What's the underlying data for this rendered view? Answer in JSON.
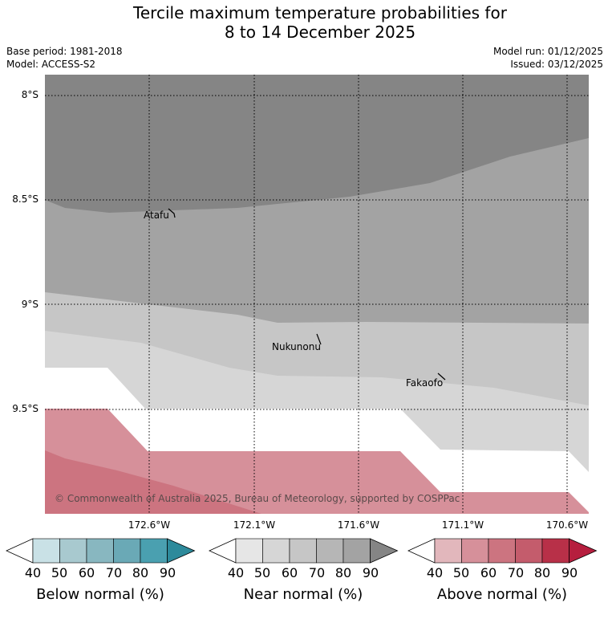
{
  "title": {
    "line1": "Tercile maximum temperature probabilities for",
    "line2": "8 to 14 December 2025"
  },
  "info": {
    "base_period": "Base period: 1981-2018",
    "model": "Model: ACCESS-S2",
    "model_run": "Model run: 01/12/2025",
    "issued": "Issued: 03/12/2025"
  },
  "axes": {
    "lat_labels": [
      "8°S",
      "8.5°S",
      "9°S",
      "9.5°S"
    ],
    "lon_labels": [
      "172.6°W",
      "172.1°W",
      "171.6°W",
      "171.1°W",
      "170.6°W"
    ]
  },
  "places": [
    "Atafu",
    "Nukunonu",
    "Fakaofo"
  ],
  "copyright": "© Commonwealth of Australia 2025, Bureau of Meteorology, supported by COSPPac",
  "colorbars": [
    {
      "title": "Below normal (%)",
      "ticks": [
        "40",
        "50",
        "60",
        "70",
        "80",
        "90"
      ],
      "colors": [
        "#ffffff",
        "#c9e1e6",
        "#a8c9cf",
        "#88b7c0",
        "#6aa9b6",
        "#4aa0b0",
        "#2d8a9b"
      ]
    },
    {
      "title": "Near normal (%)",
      "ticks": [
        "40",
        "50",
        "60",
        "70",
        "80",
        "90"
      ],
      "colors": [
        "#ffffff",
        "#e6e6e6",
        "#d6d6d6",
        "#c6c6c6",
        "#b6b6b6",
        "#a3a3a3",
        "#858585"
      ]
    },
    {
      "title": "Above normal (%)",
      "ticks": [
        "40",
        "50",
        "60",
        "70",
        "80",
        "90"
      ],
      "colors": [
        "#ffffff",
        "#e2b7bc",
        "#d6909a",
        "#cc7480",
        "#c45c6c",
        "#b83048",
        "#b61e3e"
      ]
    }
  ],
  "map_colors": {
    "near_90": "#858585",
    "near_80": "#a3a3a3",
    "near_70": "#c6c6c6",
    "near_60": "#d6d6d6",
    "above_50": "#d6909a",
    "above_60": "#cc7480",
    "white": "#ffffff"
  }
}
